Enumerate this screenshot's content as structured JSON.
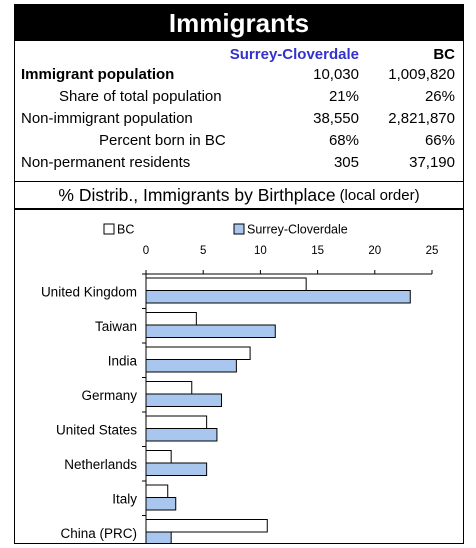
{
  "title": "Immigrants",
  "stats": {
    "col_local": "Surrey-Cloverdale",
    "col_bc": "BC",
    "rows": [
      {
        "label": "Immigrant population",
        "local": "10,030",
        "bc": "1,009,820",
        "bold": true,
        "indent": 0
      },
      {
        "label": "Share of total population",
        "local": "21%",
        "bc": "26%",
        "bold": false,
        "indent": 1
      },
      {
        "label": "Non-immigrant population",
        "local": "38,550",
        "bc": "2,821,870",
        "bold": false,
        "indent": 0
      },
      {
        "label": "Percent born in BC",
        "local": "68%",
        "bc": "66%",
        "bold": false,
        "indent": 2
      },
      {
        "label": "Non-permanent residents",
        "local": "305",
        "bc": "37,190",
        "bold": false,
        "indent": 0
      }
    ]
  },
  "subtitle": {
    "main": "% Distrib., Immigrants by Birthplace",
    "note": "(local order)"
  },
  "colors": {
    "local_fill": "#a9c7ee",
    "bc_fill": "#ffffff",
    "local_header": "#3333cc"
  },
  "chart_data": {
    "type": "bar",
    "orientation": "horizontal",
    "categories": [
      "United Kingdom",
      "Taiwan",
      "India",
      "Germany",
      "United States",
      "Netherlands",
      "Italy",
      "China (PRC)"
    ],
    "series": [
      {
        "name": "BC",
        "values": [
          14.0,
          4.4,
          9.1,
          4.0,
          5.3,
          2.2,
          1.9,
          10.6
        ]
      },
      {
        "name": "Surrey-Cloverdale",
        "values": [
          23.1,
          11.3,
          7.9,
          6.6,
          6.2,
          5.3,
          2.6,
          2.2
        ]
      }
    ],
    "xlim": [
      0,
      25
    ],
    "xticks": [
      "0",
      "5",
      "10",
      "15",
      "20",
      "25"
    ],
    "legend": "top",
    "grid": false
  }
}
